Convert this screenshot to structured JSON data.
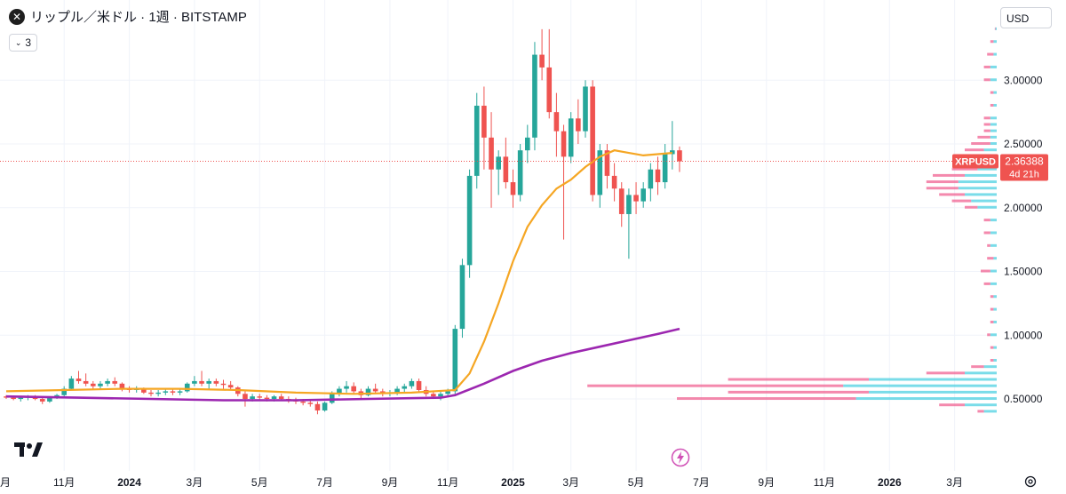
{
  "header": {
    "symbol_icon": "close-circle-icon",
    "title": "リップル／米ドル · 1週 · BITSTAMP",
    "indicator_count": "3"
  },
  "currency_selector": {
    "label": "USD"
  },
  "price_tag": {
    "symbol": "XRPUSD",
    "price": "2.36388",
    "countdown": "4d 21h",
    "price_value": 2.36388
  },
  "colors": {
    "up": "#26a69a",
    "down": "#ef5350",
    "ma_short": "#f5a623",
    "ma_long": "#9c27b0",
    "vp_up": "#4dd0e1",
    "vp_down": "#f06292",
    "tag_red": "#ef5350"
  },
  "chart_data": {
    "type": "candlestick",
    "title": "",
    "ylim": [
      0.34,
      3.42
    ],
    "y_ticks": [
      "0.50000",
      "1.00000",
      "1.50000",
      "2.00000",
      "2.50000",
      "3.00000"
    ],
    "y_tick_values": [
      0.5,
      1.0,
      1.5,
      2.0,
      2.5,
      3.0
    ],
    "x_labels": [
      {
        "label": "月",
        "week": -1,
        "bold": false
      },
      {
        "label": "11月",
        "week": 8,
        "bold": false
      },
      {
        "label": "2024",
        "week": 17,
        "bold": true
      },
      {
        "label": "3月",
        "week": 26,
        "bold": false
      },
      {
        "label": "5月",
        "week": 35,
        "bold": false
      },
      {
        "label": "7月",
        "week": 44,
        "bold": false
      },
      {
        "label": "9月",
        "week": 53,
        "bold": false
      },
      {
        "label": "11月",
        "week": 61,
        "bold": false
      },
      {
        "label": "2025",
        "week": 70,
        "bold": true
      },
      {
        "label": "3月",
        "week": 78,
        "bold": false
      },
      {
        "label": "5月",
        "week": 87,
        "bold": false
      },
      {
        "label": "7月",
        "week": 96,
        "bold": false
      },
      {
        "label": "9月",
        "week": 105,
        "bold": false
      },
      {
        "label": "11月",
        "week": 113,
        "bold": false
      },
      {
        "label": "2026",
        "week": 122,
        "bold": true
      },
      {
        "label": "3月",
        "week": 131,
        "bold": false
      }
    ],
    "candles": [
      [
        0.52,
        0.53,
        0.5,
        0.51
      ],
      [
        0.51,
        0.52,
        0.49,
        0.5
      ],
      [
        0.5,
        0.52,
        0.48,
        0.51
      ],
      [
        0.51,
        0.53,
        0.49,
        0.52
      ],
      [
        0.52,
        0.53,
        0.49,
        0.5
      ],
      [
        0.5,
        0.51,
        0.46,
        0.48
      ],
      [
        0.48,
        0.52,
        0.47,
        0.51
      ],
      [
        0.51,
        0.54,
        0.5,
        0.53
      ],
      [
        0.53,
        0.6,
        0.52,
        0.58
      ],
      [
        0.58,
        0.68,
        0.57,
        0.66
      ],
      [
        0.66,
        0.72,
        0.62,
        0.64
      ],
      [
        0.64,
        0.7,
        0.6,
        0.62
      ],
      [
        0.62,
        0.64,
        0.58,
        0.6
      ],
      [
        0.6,
        0.64,
        0.58,
        0.62
      ],
      [
        0.62,
        0.66,
        0.6,
        0.64
      ],
      [
        0.64,
        0.67,
        0.6,
        0.62
      ],
      [
        0.62,
        0.63,
        0.56,
        0.58
      ],
      [
        0.58,
        0.6,
        0.55,
        0.57
      ],
      [
        0.57,
        0.6,
        0.55,
        0.58
      ],
      [
        0.58,
        0.59,
        0.54,
        0.55
      ],
      [
        0.55,
        0.57,
        0.52,
        0.54
      ],
      [
        0.54,
        0.57,
        0.52,
        0.55
      ],
      [
        0.55,
        0.58,
        0.53,
        0.56
      ],
      [
        0.56,
        0.58,
        0.53,
        0.55
      ],
      [
        0.55,
        0.58,
        0.53,
        0.56
      ],
      [
        0.56,
        0.63,
        0.55,
        0.62
      ],
      [
        0.62,
        0.68,
        0.6,
        0.64
      ],
      [
        0.64,
        0.72,
        0.6,
        0.62
      ],
      [
        0.62,
        0.66,
        0.58,
        0.64
      ],
      [
        0.64,
        0.66,
        0.6,
        0.62
      ],
      [
        0.62,
        0.65,
        0.58,
        0.61
      ],
      [
        0.61,
        0.64,
        0.57,
        0.59
      ],
      [
        0.59,
        0.6,
        0.52,
        0.54
      ],
      [
        0.54,
        0.56,
        0.44,
        0.5
      ],
      [
        0.5,
        0.54,
        0.48,
        0.52
      ],
      [
        0.52,
        0.54,
        0.49,
        0.51
      ],
      [
        0.51,
        0.53,
        0.48,
        0.5
      ],
      [
        0.5,
        0.53,
        0.48,
        0.52
      ],
      [
        0.52,
        0.54,
        0.49,
        0.5
      ],
      [
        0.5,
        0.52,
        0.47,
        0.49
      ],
      [
        0.49,
        0.51,
        0.46,
        0.48
      ],
      [
        0.48,
        0.5,
        0.45,
        0.47
      ],
      [
        0.47,
        0.49,
        0.44,
        0.46
      ],
      [
        0.46,
        0.48,
        0.38,
        0.41
      ],
      [
        0.41,
        0.48,
        0.4,
        0.47
      ],
      [
        0.47,
        0.56,
        0.46,
        0.54
      ],
      [
        0.54,
        0.6,
        0.52,
        0.58
      ],
      [
        0.58,
        0.64,
        0.55,
        0.6
      ],
      [
        0.6,
        0.63,
        0.54,
        0.56
      ],
      [
        0.56,
        0.58,
        0.5,
        0.53
      ],
      [
        0.53,
        0.6,
        0.52,
        0.58
      ],
      [
        0.58,
        0.62,
        0.54,
        0.56
      ],
      [
        0.56,
        0.58,
        0.52,
        0.54
      ],
      [
        0.54,
        0.57,
        0.52,
        0.55
      ],
      [
        0.55,
        0.6,
        0.53,
        0.58
      ],
      [
        0.58,
        0.62,
        0.55,
        0.6
      ],
      [
        0.6,
        0.66,
        0.58,
        0.64
      ],
      [
        0.64,
        0.66,
        0.55,
        0.57
      ],
      [
        0.57,
        0.6,
        0.52,
        0.54
      ],
      [
        0.54,
        0.56,
        0.5,
        0.52
      ],
      [
        0.52,
        0.56,
        0.49,
        0.54
      ],
      [
        0.54,
        0.58,
        0.52,
        0.56
      ],
      [
        0.56,
        1.08,
        0.54,
        1.05
      ],
      [
        1.05,
        1.6,
        0.98,
        1.55
      ],
      [
        1.55,
        2.3,
        1.45,
        2.25
      ],
      [
        2.25,
        2.9,
        2.15,
        2.8
      ],
      [
        2.8,
        2.95,
        2.3,
        2.55
      ],
      [
        2.55,
        2.75,
        2.0,
        2.3
      ],
      [
        2.3,
        2.45,
        2.1,
        2.4
      ],
      [
        2.4,
        2.55,
        2.15,
        2.2
      ],
      [
        2.2,
        2.3,
        2.0,
        2.1
      ],
      [
        2.1,
        2.5,
        2.05,
        2.45
      ],
      [
        2.45,
        2.65,
        2.35,
        2.55
      ],
      [
        2.55,
        3.3,
        2.45,
        3.2
      ],
      [
        3.2,
        3.4,
        3.0,
        3.1
      ],
      [
        3.1,
        3.4,
        2.7,
        2.75
      ],
      [
        2.75,
        2.9,
        2.4,
        2.6
      ],
      [
        2.6,
        2.65,
        1.75,
        2.4
      ],
      [
        2.4,
        2.75,
        2.35,
        2.7
      ],
      [
        2.7,
        2.85,
        2.5,
        2.6
      ],
      [
        2.6,
        3.0,
        2.55,
        2.95
      ],
      [
        2.95,
        3.0,
        2.05,
        2.1
      ],
      [
        2.1,
        2.5,
        2.0,
        2.45
      ],
      [
        2.45,
        2.5,
        2.15,
        2.25
      ],
      [
        2.25,
        2.35,
        2.05,
        2.15
      ],
      [
        2.15,
        2.2,
        1.85,
        1.95
      ],
      [
        1.95,
        2.15,
        1.6,
        2.1
      ],
      [
        2.1,
        2.2,
        1.95,
        2.05
      ],
      [
        2.05,
        2.2,
        2.0,
        2.15
      ],
      [
        2.15,
        2.35,
        2.05,
        2.3
      ],
      [
        2.3,
        2.4,
        2.1,
        2.2
      ],
      [
        2.2,
        2.5,
        2.15,
        2.42
      ],
      [
        2.42,
        2.68,
        2.3,
        2.45
      ],
      [
        2.45,
        2.48,
        2.28,
        2.36388
      ]
    ],
    "first_week_index": 0,
    "ma_short": {
      "weeks": [
        0,
        8,
        16,
        24,
        32,
        40,
        48,
        56,
        62,
        64,
        66,
        68,
        70,
        72,
        74,
        76,
        78,
        80,
        82,
        84,
        86,
        88,
        90,
        92
      ],
      "values": [
        0.56,
        0.57,
        0.58,
        0.58,
        0.57,
        0.55,
        0.54,
        0.55,
        0.57,
        0.7,
        0.95,
        1.25,
        1.58,
        1.85,
        2.02,
        2.15,
        2.22,
        2.32,
        2.4,
        2.45,
        2.43,
        2.41,
        2.42,
        2.43
      ]
    },
    "ma_long": {
      "weeks": [
        0,
        10,
        20,
        30,
        40,
        50,
        60,
        62,
        66,
        70,
        74,
        78,
        82,
        86,
        90,
        93
      ],
      "values": [
        0.52,
        0.51,
        0.5,
        0.49,
        0.49,
        0.5,
        0.51,
        0.53,
        0.62,
        0.72,
        0.8,
        0.86,
        0.91,
        0.96,
        1.01,
        1.05
      ]
    },
    "volume_profile": {
      "prices": [
        0.4,
        0.45,
        0.5,
        0.55,
        0.6,
        0.65,
        0.7,
        0.75,
        0.8,
        0.9,
        1.0,
        1.1,
        1.2,
        1.3,
        1.4,
        1.5,
        1.6,
        1.7,
        1.8,
        1.9,
        2.0,
        2.05,
        2.1,
        2.15,
        2.2,
        2.25,
        2.3,
        2.35,
        2.4,
        2.45,
        2.5,
        2.55,
        2.6,
        2.65,
        2.7,
        2.8,
        2.9,
        3.0,
        3.1,
        3.2,
        3.3,
        3.4
      ],
      "up": [
        0.02,
        0.05,
        0.22,
        0.2,
        0.24,
        0.2,
        0.05,
        0.02,
        0.005,
        0.005,
        0.01,
        0.005,
        0.005,
        0.005,
        0.01,
        0.01,
        0.005,
        0.01,
        0.01,
        0.01,
        0.03,
        0.04,
        0.05,
        0.06,
        0.06,
        0.05,
        0.03,
        0.02,
        0.02,
        0.02,
        0.01,
        0.01,
        0.01,
        0.01,
        0.01,
        0.005,
        0.005,
        0.01,
        0.01,
        0.005,
        0.005,
        0.002
      ],
      "down": [
        0.01,
        0.04,
        0.28,
        0.22,
        0.4,
        0.22,
        0.06,
        0.02,
        0.005,
        0.005,
        0.005,
        0.005,
        0.005,
        0.005,
        0.01,
        0.015,
        0.01,
        0.005,
        0.01,
        0.01,
        0.02,
        0.03,
        0.04,
        0.05,
        0.05,
        0.05,
        0.04,
        0.03,
        0.03,
        0.03,
        0.03,
        0.02,
        0.01,
        0.01,
        0.01,
        0.005,
        0.005,
        0.01,
        0.01,
        0.01,
        0.005,
        0.001
      ]
    }
  }
}
